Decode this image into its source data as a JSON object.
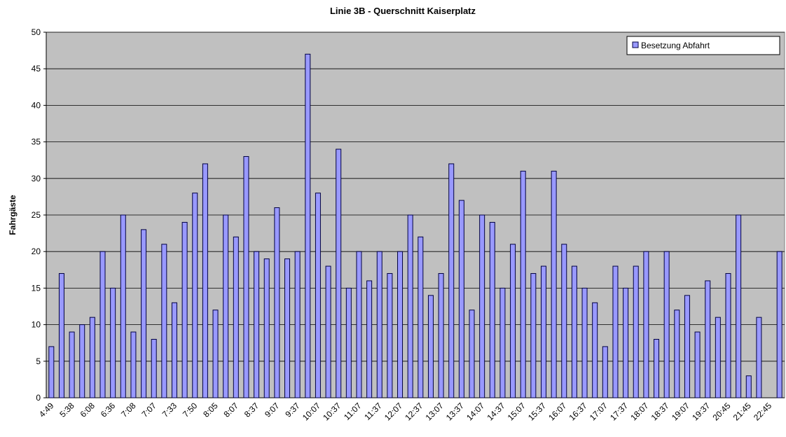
{
  "chart_data": {
    "type": "bar",
    "title": "Linie 3B - Querschnitt Kaiserplatz",
    "y_label": "Fahrgäste",
    "categories": [
      "4:49",
      null,
      "5:38",
      null,
      "6:08",
      null,
      "6:36",
      null,
      "7:08",
      null,
      "7:07",
      null,
      "7:33",
      null,
      "7:50",
      null,
      "8:05",
      null,
      "8:07",
      null,
      "8:37",
      null,
      "9:07",
      null,
      "9:37",
      null,
      "10:07",
      null,
      "10:37",
      null,
      "11:07",
      null,
      "11:37",
      null,
      "12:07",
      null,
      "12:37",
      null,
      "13:07",
      null,
      "13:37",
      null,
      "14:07",
      null,
      "14:37",
      null,
      "15:07",
      null,
      "15:37",
      null,
      "16:07",
      null,
      "16:37",
      null,
      "17:07",
      null,
      "17:37",
      null,
      "18:07",
      null,
      "18:37",
      null,
      "19:07",
      null,
      "19:37",
      null,
      "20:45",
      null,
      "21:45",
      null,
      "22:45",
      null
    ],
    "series": [
      {
        "name": "Besetzung Abfahrt",
        "color": "#9999ff",
        "values": [
          7,
          17,
          9,
          10,
          11,
          20,
          15,
          25,
          9,
          23,
          8,
          21,
          13,
          24,
          28,
          32,
          12,
          25,
          22,
          33,
          20,
          19,
          26,
          19,
          20,
          47,
          28,
          18,
          34,
          15,
          20,
          16,
          20,
          17,
          20,
          25,
          22,
          14,
          17,
          32,
          27,
          12,
          25,
          24,
          15,
          21,
          31,
          17,
          18,
          31,
          21,
          18,
          15,
          13,
          7,
          18,
          15,
          18,
          20,
          8,
          20,
          12,
          14,
          9,
          16,
          11,
          17,
          25,
          3,
          11,
          null,
          20
        ]
      }
    ],
    "ylim": [
      0,
      50
    ],
    "yticks": [
      0,
      5,
      10,
      15,
      20,
      25,
      30,
      35,
      40,
      45,
      50
    ],
    "grid": true,
    "legend": "top-right",
    "background": "#c0c0c0"
  }
}
